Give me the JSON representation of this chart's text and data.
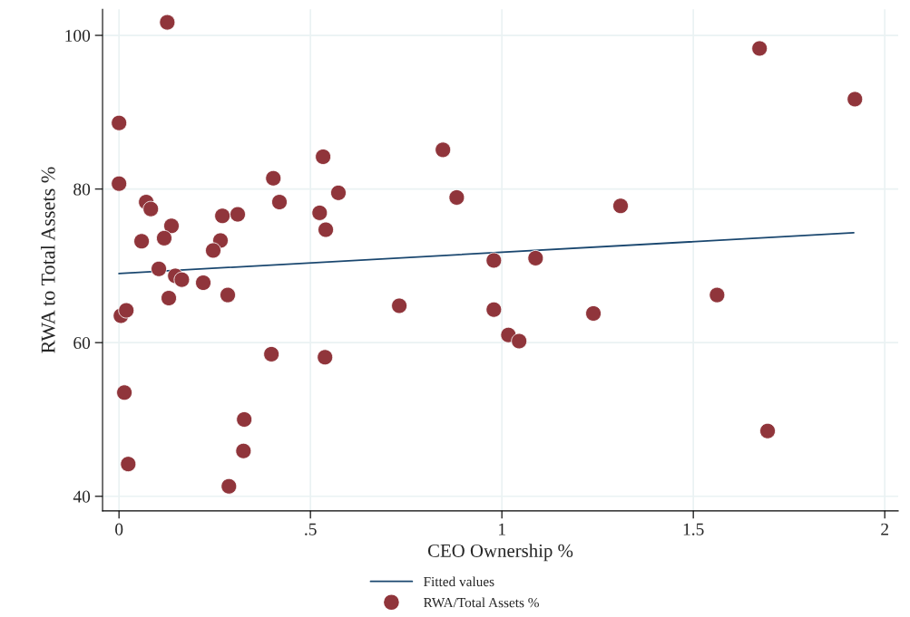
{
  "chart_data": {
    "type": "scatter",
    "xlabel": "CEO Ownership %",
    "ylabel": "RWA to Total Assets %",
    "xlim": [
      -0.043,
      2.035
    ],
    "xticks": [
      0,
      {
        "value": 0.5,
        "label": ".5"
      },
      1,
      1.5,
      2
    ],
    "ylim": [
      38.1,
      103.4
    ],
    "yticks": [
      40,
      60,
      80,
      100
    ],
    "grid": true,
    "legend": "bottom",
    "series": [
      {
        "name": "Fitted values",
        "type": "line",
        "color": "#1a476f",
        "x": [
          0,
          1.919
        ],
        "values": [
          69.0,
          74.3
        ]
      },
      {
        "name": "RWA/Total Assets %",
        "marker": "circle",
        "color": "#90353b",
        "x": [
          0.0,
          0.0,
          0.126,
          0.071,
          0.083,
          0.137,
          0.118,
          0.059,
          0.265,
          0.246,
          0.31,
          0.27,
          0.419,
          0.403,
          0.533,
          0.573,
          0.524,
          0.54,
          0.104,
          0.147,
          0.164,
          0.22,
          0.13,
          0.284,
          0.005,
          0.019,
          0.398,
          0.538,
          0.014,
          0.327,
          0.325,
          0.024,
          0.287,
          0.732,
          1.673,
          1.922,
          0.846,
          0.882,
          1.31,
          0.979,
          1.088,
          0.979,
          1.017,
          1.045,
          1.239,
          1.562,
          1.694
        ],
        "values": [
          88.6,
          80.7,
          101.7,
          78.3,
          77.4,
          75.2,
          73.6,
          73.2,
          73.3,
          72.0,
          76.7,
          76.5,
          78.3,
          81.4,
          84.2,
          79.5,
          76.9,
          74.7,
          69.6,
          68.7,
          68.2,
          67.8,
          65.8,
          66.2,
          63.5,
          64.2,
          58.5,
          58.1,
          53.5,
          50.0,
          45.9,
          44.2,
          41.3,
          64.8,
          98.3,
          91.7,
          85.1,
          78.9,
          77.8,
          70.7,
          71.0,
          64.3,
          61.0,
          60.2,
          63.8,
          66.2,
          48.5
        ]
      }
    ]
  }
}
